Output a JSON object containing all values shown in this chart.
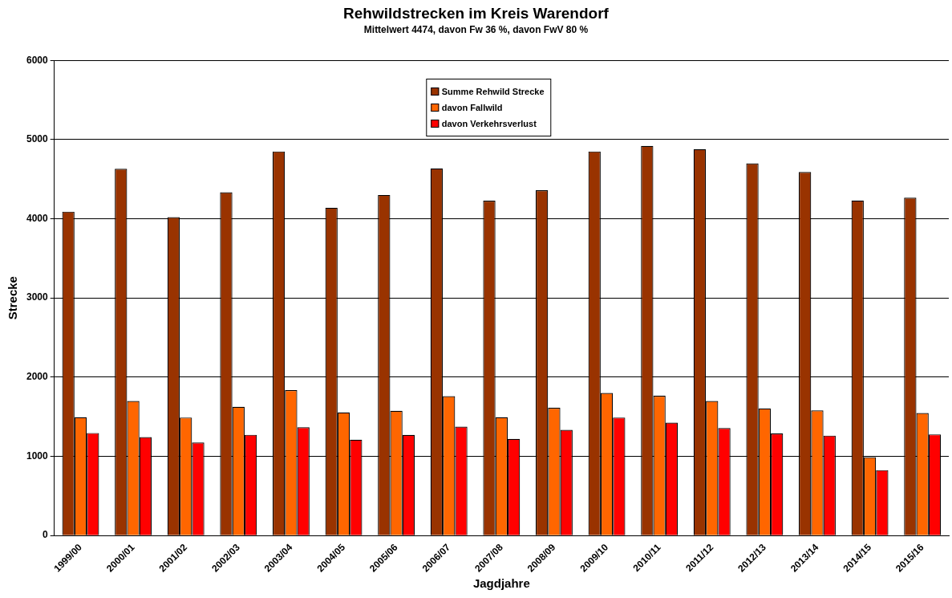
{
  "chart_data": {
    "type": "bar",
    "title": "Rehwildstrecken im Kreis Warendorf",
    "subtitle": "Mittelwert 4474, davon Fw 36 %, davon FwV 80 %",
    "xlabel": "Jagdjahre",
    "ylabel": "Strecke",
    "categories": [
      "1999/00",
      "2000/01",
      "2001/02",
      "2002/03",
      "2003/04",
      "2004/05",
      "2005/06",
      "2006/07",
      "2007/08",
      "2008/09",
      "2009/10",
      "2010/11",
      "2011/12",
      "2012/13",
      "2013/14",
      "2014/15",
      "2015/16"
    ],
    "series": [
      {
        "name": "Summe Rehwild Strecke",
        "color": "#993300",
        "values": [
          4090,
          4630,
          4020,
          4335,
          4850,
          4140,
          4300,
          4635,
          4228,
          4360,
          4850,
          4920,
          4880,
          4700,
          4590,
          4230,
          4265
        ]
      },
      {
        "name": "davon Fallwild",
        "color": "#ff6600",
        "values": [
          1494,
          1700,
          1490,
          1625,
          1835,
          1555,
          1575,
          1760,
          1494,
          1612,
          1800,
          1765,
          1700,
          1604,
          1580,
          990,
          1547
        ]
      },
      {
        "name": "davon Verkehrsverlust",
        "color": "#ff0000",
        "values": [
          1295,
          1243,
          1175,
          1272,
          1367,
          1210,
          1270,
          1375,
          1220,
          1335,
          1490,
          1425,
          1357,
          1288,
          1262,
          826,
          1277
        ]
      }
    ],
    "ylim": [
      0,
      6000
    ],
    "yticks": [
      0,
      1000,
      2000,
      3000,
      4000,
      5000,
      6000
    ],
    "grid": "y",
    "legend": "top"
  }
}
